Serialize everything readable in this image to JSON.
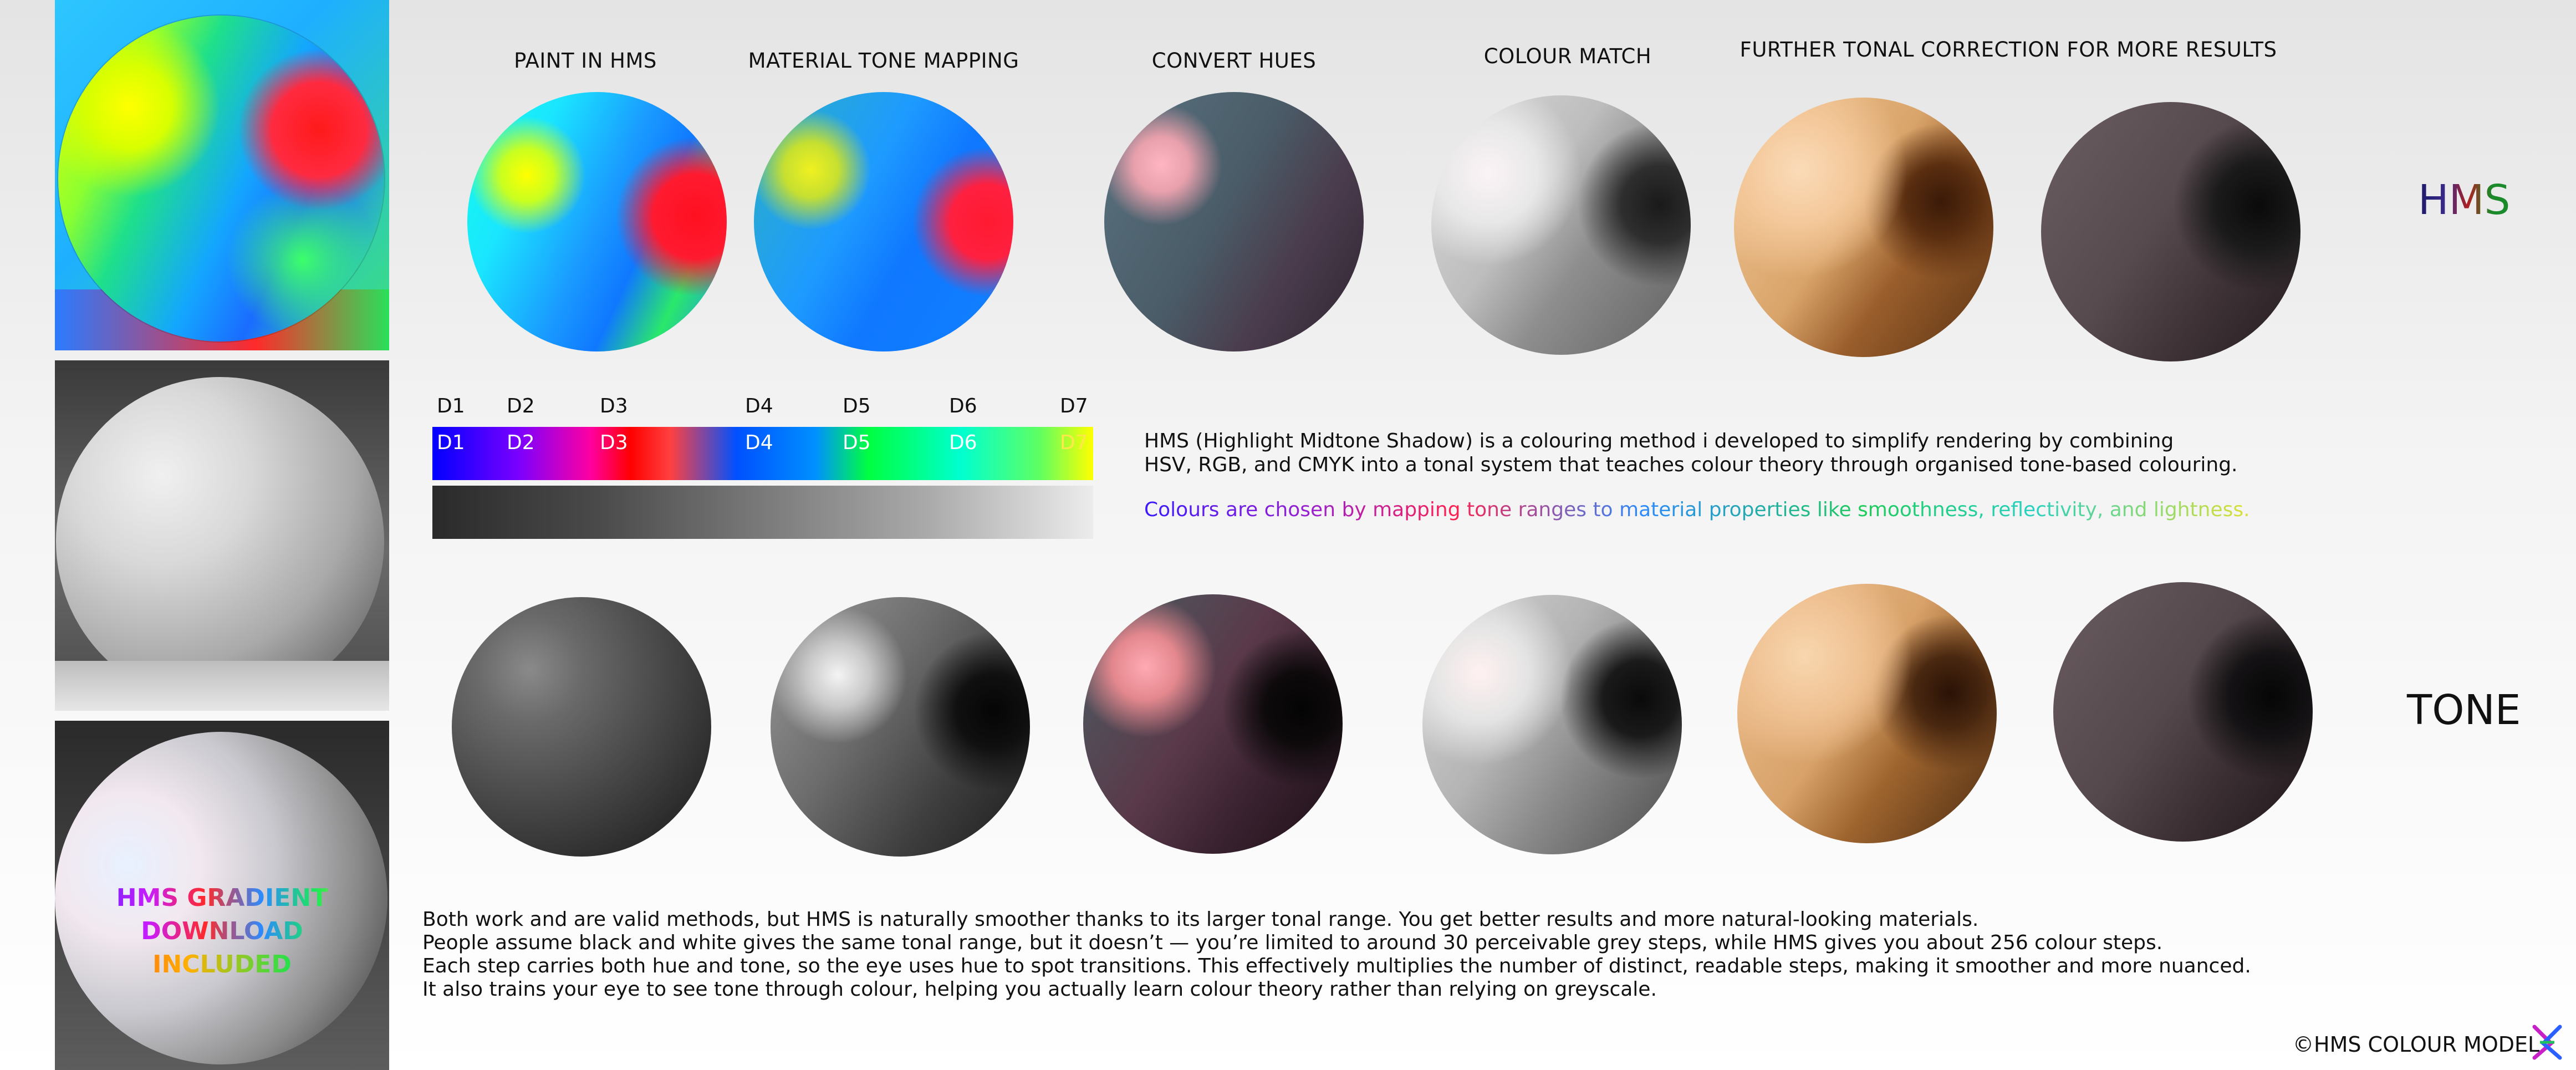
{
  "columns": {
    "paint": "PAINT IN HMS",
    "tone_mapping": "MATERIAL TONE MAPPING",
    "convert": "CONVERT HUES",
    "match": "COLOUR MATCH",
    "further": "FURTHER TONAL CORRECTION FOR MORE RESULTS"
  },
  "rows": {
    "hms": "HMS",
    "tone": "TONE"
  },
  "gradient": {
    "top_labels": [
      "D1",
      "D2",
      "D3",
      "D4",
      "D5",
      "D6",
      "D7"
    ],
    "bar_labels": [
      "D1",
      "D2",
      "D3",
      "D4",
      "D5",
      "D6",
      "D7"
    ]
  },
  "description": {
    "line1": "HMS (Highlight Midtone Shadow) is a colouring method i developed to simplify rendering by combining",
    "line2": "HSV, RGB, and CMYK into a tonal system that teaches colour theory through organised tone-based colouring.",
    "colour_line": "Colours are chosen by mapping tone ranges to material properties like smoothness, reflectivity, and lightness."
  },
  "banner": {
    "line1": "HMS GRADIENT DOWNLOAD",
    "line2": "INCLUDED"
  },
  "footer": [
    "Both work and are valid methods, but HMS is naturally smoother thanks to its larger tonal range. You get better results and more natural-looking materials.",
    "People assume black and white gives the same tonal range, but it doesn’t — you’re limited to around 30 perceivable grey steps, while HMS gives you about 256 colour steps.",
    "Each step carries both hue and tone, so the eye uses hue to spot transitions. This effectively multiplies the number of distinct, readable steps, making it smoother and more nuanced.",
    "It also trains your eye to see tone through colour, helping you actually learn colour theory rather than relying on greyscale."
  ],
  "copyright": "©HMS COLOUR MODEL",
  "logo_icon": "hms-logo-icon"
}
